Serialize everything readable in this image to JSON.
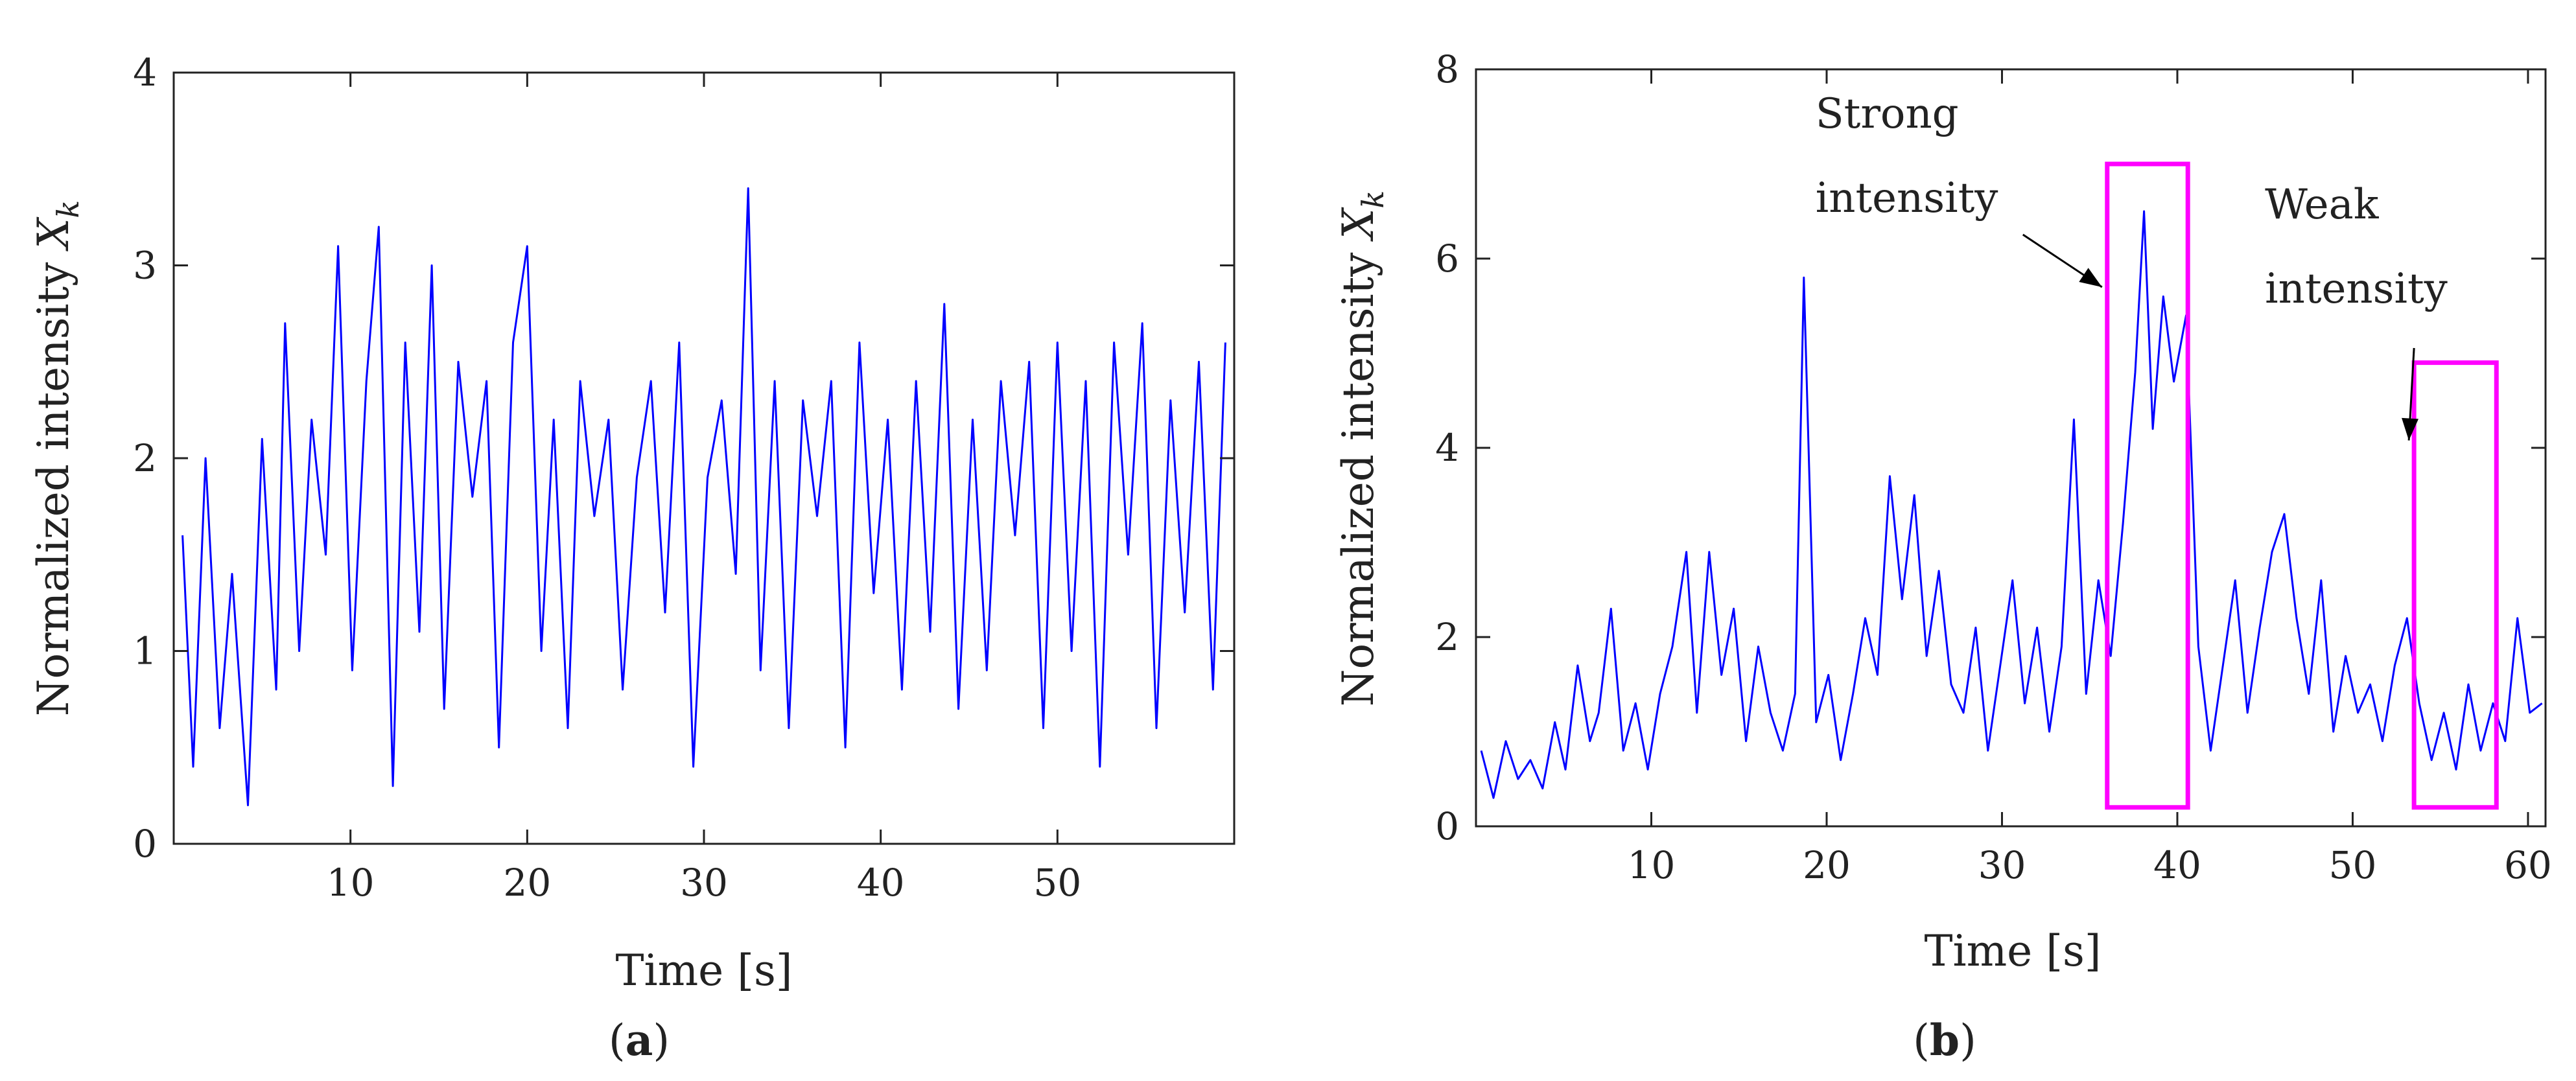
{
  "chart_data": [
    {
      "type": "line",
      "panel": "(a)",
      "caption_letter": "a",
      "xlabel": "Time [s]",
      "ylabel": "Normalized intensity",
      "ylabel_symbol": "X",
      "ylabel_subscript": "k",
      "xlim": [
        0,
        60
      ],
      "ylim": [
        0,
        4
      ],
      "xticks": [
        10,
        20,
        30,
        40,
        50
      ],
      "yticks": [
        0,
        1,
        2,
        3,
        4
      ],
      "color": "#0000ff",
      "grid": false,
      "series": [
        {
          "x": [
            0.5,
            1.1,
            1.8,
            2.6,
            3.3,
            4.2,
            5.0,
            5.8,
            6.3,
            7.1,
            7.8,
            8.6,
            9.3,
            10.1,
            10.9,
            11.6,
            12.4,
            13.1,
            13.9,
            14.6,
            15.3,
            16.1,
            16.9,
            17.7,
            18.4,
            19.2,
            20.0,
            20.8,
            21.5,
            22.3,
            23.0,
            23.8,
            24.6,
            25.4,
            26.2,
            27.0,
            27.8,
            28.6,
            29.4,
            30.2,
            31.0,
            31.8,
            32.5,
            33.2,
            34.0,
            34.8,
            35.6,
            36.4,
            37.2,
            38.0,
            38.8,
            39.6,
            40.4,
            41.2,
            42.0,
            42.8,
            43.6,
            44.4,
            45.2,
            46.0,
            46.8,
            47.6,
            48.4,
            49.2,
            50.0,
            50.8,
            51.6,
            52.4,
            53.2,
            54.0,
            54.8,
            55.6,
            56.4,
            57.2,
            58.0,
            58.8,
            59.5
          ],
          "y": [
            1.6,
            0.4,
            2.0,
            0.6,
            1.4,
            0.2,
            2.1,
            0.8,
            2.7,
            1.0,
            2.2,
            1.5,
            3.1,
            0.9,
            2.4,
            3.2,
            0.3,
            2.6,
            1.1,
            3.0,
            0.7,
            2.5,
            1.8,
            2.4,
            0.5,
            2.6,
            3.1,
            1.0,
            2.2,
            0.6,
            2.4,
            1.7,
            2.2,
            0.8,
            1.9,
            2.4,
            1.2,
            2.6,
            0.4,
            1.9,
            2.3,
            1.4,
            3.4,
            0.9,
            2.4,
            0.6,
            2.3,
            1.7,
            2.4,
            0.5,
            2.6,
            1.3,
            2.2,
            0.8,
            2.4,
            1.1,
            2.8,
            0.7,
            2.2,
            0.9,
            2.4,
            1.6,
            2.5,
            0.6,
            2.6,
            1.0,
            2.4,
            0.4,
            2.6,
            1.5,
            2.7,
            0.6,
            2.3,
            1.2,
            2.5,
            0.8,
            2.6
          ]
        }
      ]
    },
    {
      "type": "line",
      "panel": "(b)",
      "caption_letter": "b",
      "xlabel": "Time [s]",
      "ylabel": "Normalized intensity",
      "ylabel_symbol": "X",
      "ylabel_subscript": "k",
      "xlim": [
        0,
        61
      ],
      "ylim": [
        0,
        8
      ],
      "xticks": [
        10,
        20,
        30,
        40,
        50,
        60
      ],
      "yticks": [
        0,
        2,
        4,
        6,
        8
      ],
      "color": "#0000ff",
      "grid": false,
      "series": [
        {
          "x": [
            0.3,
            1.0,
            1.7,
            2.4,
            3.1,
            3.8,
            4.5,
            5.1,
            5.8,
            6.5,
            7.0,
            7.7,
            8.4,
            9.1,
            9.8,
            10.5,
            11.2,
            12.0,
            12.6,
            13.3,
            14.0,
            14.7,
            15.4,
            16.1,
            16.8,
            17.5,
            18.2,
            18.7,
            19.4,
            20.1,
            20.8,
            21.5,
            22.2,
            22.9,
            23.6,
            24.3,
            25.0,
            25.7,
            26.4,
            27.1,
            27.8,
            28.5,
            29.2,
            29.9,
            30.6,
            31.3,
            32.0,
            32.7,
            33.4,
            34.1,
            34.8,
            35.5,
            36.2,
            36.9,
            37.6,
            38.1,
            38.6,
            39.2,
            39.8,
            40.5,
            41.2,
            41.9,
            42.6,
            43.3,
            44.0,
            44.7,
            45.4,
            46.1,
            46.8,
            47.5,
            48.2,
            48.9,
            49.6,
            50.3,
            51.0,
            51.7,
            52.4,
            53.1,
            53.8,
            54.5,
            55.2,
            55.9,
            56.6,
            57.3,
            58.0,
            58.7,
            59.4,
            60.1,
            60.8
          ],
          "y": [
            0.8,
            0.3,
            0.9,
            0.5,
            0.7,
            0.4,
            1.1,
            0.6,
            1.7,
            0.9,
            1.2,
            2.3,
            0.8,
            1.3,
            0.6,
            1.4,
            1.9,
            2.9,
            1.2,
            2.9,
            1.6,
            2.3,
            0.9,
            1.9,
            1.2,
            0.8,
            1.4,
            5.8,
            1.1,
            1.6,
            0.7,
            1.4,
            2.2,
            1.6,
            3.7,
            2.4,
            3.5,
            1.8,
            2.7,
            1.5,
            1.2,
            2.1,
            0.8,
            1.7,
            2.6,
            1.3,
            2.1,
            1.0,
            1.9,
            4.3,
            1.4,
            2.6,
            1.8,
            3.2,
            4.8,
            6.5,
            4.2,
            5.6,
            4.7,
            5.4,
            1.9,
            0.8,
            1.7,
            2.6,
            1.2,
            2.1,
            2.9,
            3.3,
            2.2,
            1.4,
            2.6,
            1.0,
            1.8,
            1.2,
            1.5,
            0.9,
            1.7,
            2.2,
            1.3,
            0.7,
            1.2,
            0.6,
            1.5,
            0.8,
            1.3,
            0.9,
            2.2,
            1.2,
            1.3
          ]
        }
      ],
      "annotations": [
        {
          "lines": [
            "Strong",
            "intensity"
          ],
          "box_x": [
            36,
            40.6
          ],
          "box_y": [
            0.2,
            7.0
          ],
          "box_color": "#ff00ff"
        },
        {
          "lines": [
            "Weak",
            "intensity"
          ],
          "box_x": [
            53.5,
            58.2
          ],
          "box_y": [
            0.2,
            4.9
          ],
          "box_color": "#ff00ff"
        }
      ]
    }
  ]
}
